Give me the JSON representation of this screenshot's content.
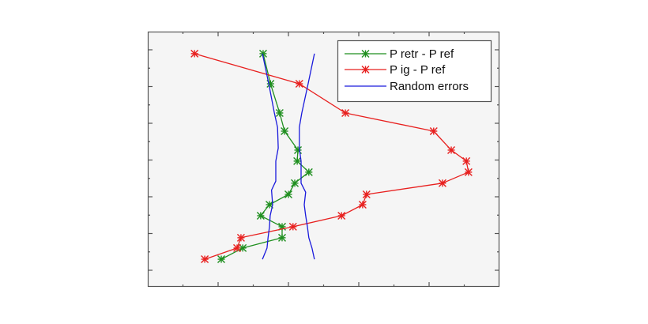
{
  "chart_data": {
    "type": "line",
    "title": "",
    "xlabel": "",
    "ylabel": "",
    "xlim": [
      0,
      10
    ],
    "ylim": [
      0.1,
      14
    ],
    "grid": false,
    "tick_labels_visible": false,
    "x_major_ticks": [
      2,
      4,
      6,
      8
    ],
    "x_minor_ticks": [
      1,
      3,
      5,
      7,
      9
    ],
    "y_major_ticks": [
      1,
      3,
      5,
      7,
      9,
      11,
      13
    ],
    "y_minor_ticks": [
      2,
      4,
      6,
      8,
      10,
      12
    ],
    "legend_position": "upper right",
    "series": [
      {
        "name": "P retr - P ref",
        "color": "#1f8f1f",
        "marker": "asterisk",
        "x": [
          3.28,
          3.49,
          3.75,
          3.89,
          4.27,
          4.25,
          4.58,
          4.18,
          4.0,
          3.46,
          3.21,
          3.82,
          3.82,
          2.7,
          2.09
        ],
        "y": [
          12.79,
          11.15,
          9.56,
          8.57,
          7.54,
          6.94,
          6.34,
          5.74,
          5.13,
          4.57,
          3.97,
          3.37,
          2.77,
          2.21,
          1.6
        ]
      },
      {
        "name": "P ig - P ref",
        "color": "#e8201f",
        "marker": "asterisk",
        "x": [
          1.33,
          4.31,
          5.62,
          8.13,
          8.63,
          9.06,
          9.12,
          8.38,
          6.22,
          6.11,
          5.51,
          4.13,
          2.65,
          2.54,
          1.62
        ],
        "y": [
          12.79,
          11.15,
          9.56,
          8.57,
          7.54,
          6.94,
          6.34,
          5.74,
          5.13,
          4.57,
          3.97,
          3.37,
          2.77,
          2.21,
          1.6
        ]
      },
      {
        "name": "Random errors",
        "color": "#1a1adc",
        "marker": "none",
        "segments": [
          {
            "x": [
              3.26,
              3.44,
              3.6,
              3.69,
              3.71,
              3.64,
              3.64,
              3.52,
              3.55,
              3.48,
              3.46,
              3.42,
              3.39,
              3.26
            ],
            "y": [
              12.79,
              11.15,
              9.56,
              8.78,
              7.65,
              6.94,
              5.85,
              5.36,
              4.57,
              3.97,
              3.37,
              2.77,
              2.21,
              1.6
            ]
          },
          {
            "x": [
              4.74,
              4.56,
              4.38,
              4.31,
              4.31,
              4.36,
              4.36,
              4.49,
              4.45,
              4.49,
              4.54,
              4.58,
              4.67,
              4.74
            ],
            "y": [
              12.79,
              11.15,
              9.56,
              8.78,
              7.65,
              6.94,
              5.74,
              5.25,
              4.57,
              3.97,
              3.37,
              2.77,
              2.21,
              1.6
            ]
          }
        ]
      }
    ]
  },
  "legend": {
    "items": [
      {
        "label": "P retr - P ref",
        "color": "#1f8f1f",
        "marker": "asterisk"
      },
      {
        "label": "P ig - P ref",
        "color": "#e8201f",
        "marker": "asterisk"
      },
      {
        "label": "Random errors",
        "color": "#1a1adc",
        "marker": "none"
      }
    ]
  },
  "colors": {
    "figure_background": "#ffffff",
    "axes_background": "#f5f5f5",
    "axes_edge": "#555555",
    "legend_background": "#ffffff",
    "legend_edge": "#555555"
  }
}
